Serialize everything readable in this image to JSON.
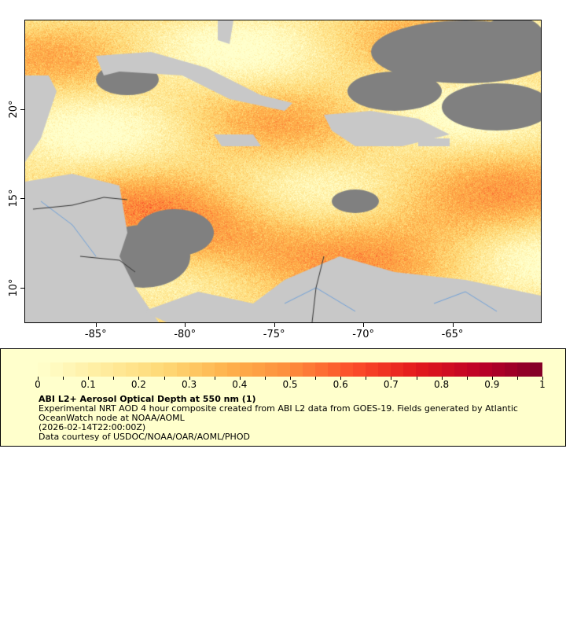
{
  "map": {
    "lon_range": [
      -89,
      -60
    ],
    "lat_range": [
      8,
      25
    ],
    "x_ticks": [
      "-85°",
      "-80°",
      "-75°",
      "-70°",
      "-65°"
    ],
    "x_tick_values": [
      -85,
      -80,
      -75,
      -70,
      -65
    ],
    "y_ticks": [
      "20°",
      "15°",
      "10°"
    ],
    "y_tick_values": [
      20,
      15,
      10
    ],
    "colors": {
      "land": "#c8c8c8",
      "no_data": "#808080",
      "rivers": "#6fa0d8",
      "borders": "#808080"
    }
  },
  "legend": {
    "colorbar_labels": [
      "0",
      "0.1",
      "0.2",
      "0.3",
      "0.4",
      "0.5",
      "0.6",
      "0.7",
      "0.8",
      "0.9",
      "1"
    ],
    "colorbar_range": [
      0,
      1
    ],
    "colormap": [
      "#ffffcc",
      "#ffeda0",
      "#fed976",
      "#feb24c",
      "#fd8d3c",
      "#fc4e2a",
      "#e31a1c",
      "#bd0026",
      "#800026"
    ],
    "title": "ABI L2+ Aerosol Optical Depth at 550 nm (1)",
    "description_line1": "Experimental NRT AOD 4 hour composite created from ABI L2 data from GOES-19. Fields generated by Atlantic",
    "description_line2": "OceanWatch node at NOAA/AOML",
    "time": "(2026-02-14T22:00:00Z)",
    "credit": "Data courtesy of USDOC/NOAA/OAR/AOML/PHOD"
  }
}
